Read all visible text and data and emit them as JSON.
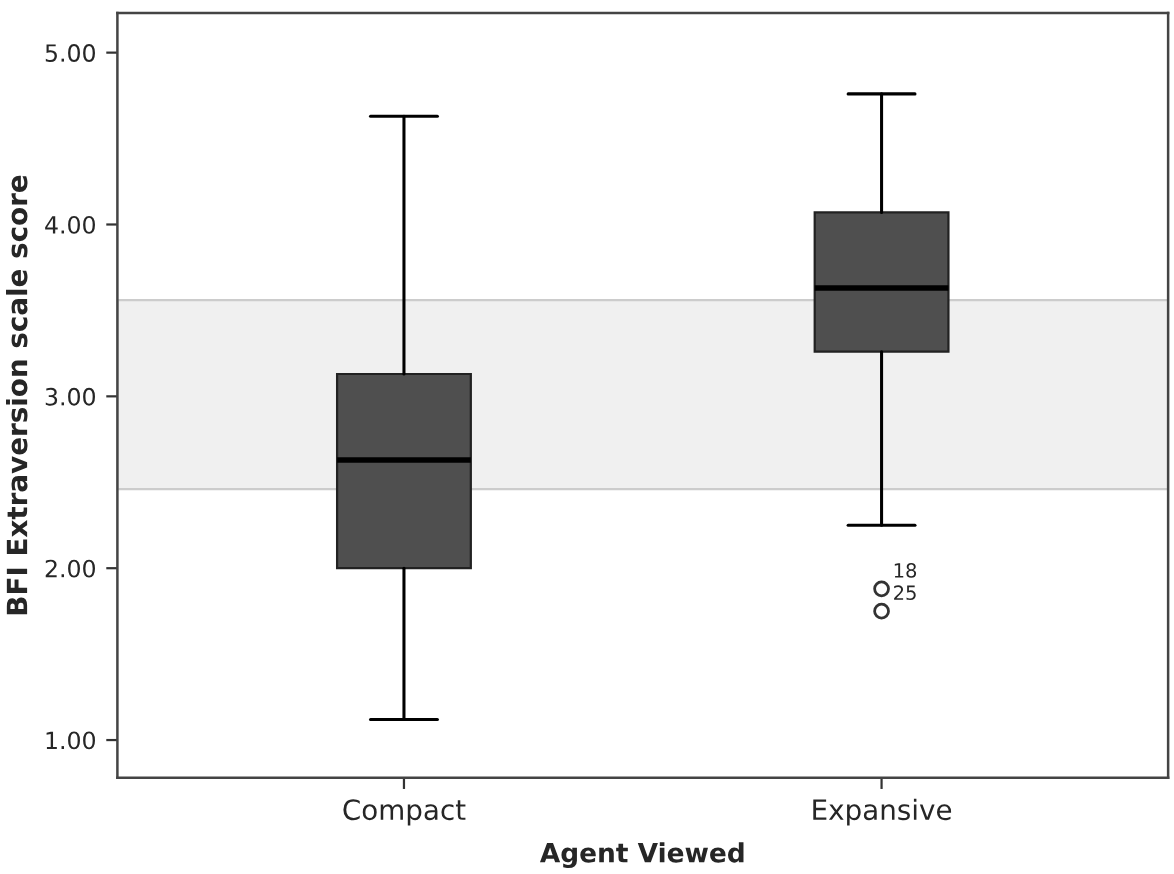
{
  "chart_data": {
    "type": "box",
    "xlabel": "Agent Viewed",
    "ylabel": "BFI Extraversion scale score",
    "categories": [
      "Compact",
      "Expansive"
    ],
    "series": [
      {
        "color": "#4f4f4f",
        "boxes": [
          {
            "low": 1.12,
            "q1": 2.0,
            "median": 2.63,
            "q3": 3.13,
            "high": 4.63
          },
          {
            "low": 2.25,
            "q1": 3.26,
            "median": 3.63,
            "q3": 4.07,
            "high": 4.76,
            "outliers": [
              1.88,
              1.75
            ]
          }
        ]
      }
    ],
    "ylim": [
      0.78,
      5.23
    ],
    "yticks": [
      {
        "value": 1,
        "label": "1.00"
      },
      {
        "value": 2,
        "label": "2.00"
      },
      {
        "value": 3,
        "label": "3.00"
      },
      {
        "value": 4,
        "label": "4.00"
      },
      {
        "value": 5,
        "label": "5.00"
      }
    ],
    "bands": [
      {
        "axis": "y",
        "from": 2.46,
        "to": 3.56,
        "color": "#f0f0f0"
      }
    ],
    "annotations": [
      "18",
      "25"
    ],
    "grid": false
  }
}
